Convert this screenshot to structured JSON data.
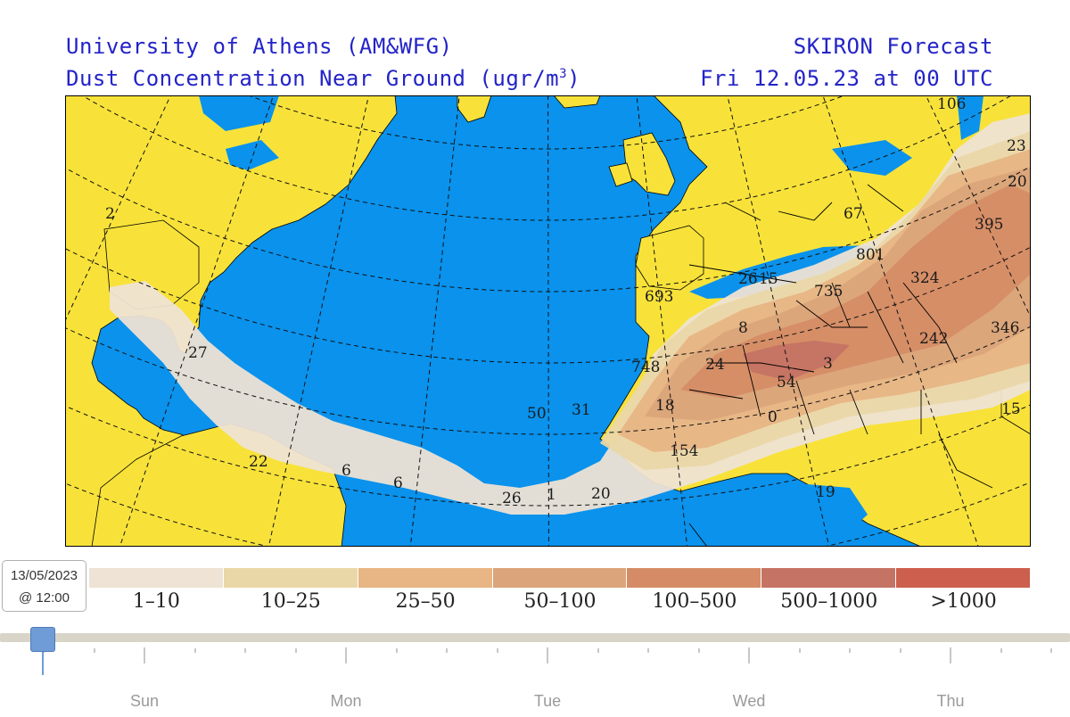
{
  "header": {
    "left_line1": "University of Athens (AM&WFG)",
    "left_line2_prefix": "Dust Concentration Near Ground (ugr/m",
    "left_line2_sup": "3",
    "left_line2_suffix": ")",
    "right_line1": "SKIRON Forecast",
    "right_line2": "Fri 12.05.23 at 00 UTC"
  },
  "colors": {
    "ocean": "#0a92ec",
    "land": "#f8e23a",
    "borders": "#000000",
    "grid": "#111111"
  },
  "map_labels": [
    "106",
    "23",
    "20",
    "395",
    "67",
    "801",
    "324",
    "346",
    "242",
    "735",
    "26",
    "15",
    "693",
    "8",
    "24",
    "3",
    "54",
    "748",
    "18",
    "0",
    "154",
    "19",
    "15",
    "50",
    "31",
    "26",
    "1",
    "20",
    "6",
    "6",
    "22",
    "27",
    "2"
  ],
  "legend": {
    "categories": [
      {
        "label": "1–10",
        "color": "#eee3d4"
      },
      {
        "label": "10–25",
        "color": "#ead7a8"
      },
      {
        "label": "25–50",
        "color": "#e8b584"
      },
      {
        "label": "50–100",
        "color": "#dba47a"
      },
      {
        "label": "100–500",
        "color": "#d58c66"
      },
      {
        "label": "500–1000",
        "color": "#c57364"
      },
      {
        "label": ">1000",
        "color": "#cd5f4e"
      }
    ]
  },
  "timeline": {
    "tooltip_date": "13/05/2023",
    "tooltip_time": "@ 12:00",
    "days": [
      "Sun",
      "Mon",
      "Tue",
      "Wed",
      "Thu"
    ],
    "handle_color": "#6f9bd6"
  }
}
